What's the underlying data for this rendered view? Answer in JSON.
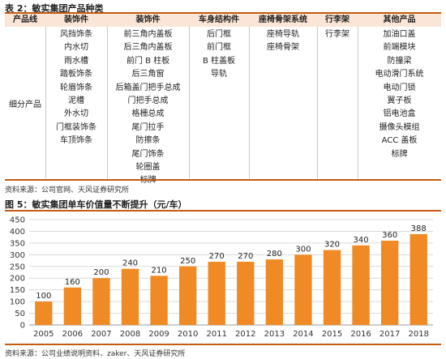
{
  "table_title": "表 2：敏实集团产品种类",
  "table": {
    "headers": [
      "产品线",
      "装饰件",
      "装饰件",
      "车身结构件",
      "座椅骨架系统",
      "行李架",
      "其他产品"
    ],
    "row_label": "细分产品",
    "columns": [
      [
        "风挡饰条",
        "内水切",
        "雨水槽",
        "踏板饰条",
        "轮眉饰条",
        "泥槽",
        "外水切",
        "门框装饰条",
        "车顶饰条"
      ],
      [
        "前三角内盖板",
        "后三角内盖板",
        "前门 B 柱板",
        "后三角窗",
        "后箱盖门把手总成",
        "门把手总成",
        "格栅总成",
        "尾门拉手",
        "防擦条",
        "尾门饰条",
        "轮圈盖",
        "标牌"
      ],
      [
        "后门框",
        "前门框",
        "B 柱盖板",
        "导轨"
      ],
      [
        "座椅导轨",
        "座椅骨架"
      ],
      [
        "行李架"
      ],
      [
        "加油口盖",
        "前端模块",
        "防撞梁",
        "电动滑门系统",
        "电动门锁",
        "翼子板",
        "铝电池盒",
        "摄像头模组",
        "ACC 盖板",
        "标牌"
      ]
    ]
  },
  "table_source": "资料来源：公司官网、天风证券研究所",
  "chart_title": "图 5：敏实集团单车价值量不断提升（元/车）",
  "chart_source": "资料来源：公司业绩说明资料、zaker、天风证券研究所",
  "colors": {
    "bar": "#f08a24",
    "rule": "#c55a11",
    "header_bg": "#fbe5d6",
    "grid": "#d9d9d9"
  },
  "chart_data": {
    "type": "bar",
    "categories": [
      "2005",
      "2006",
      "2007",
      "2008",
      "2009",
      "2010",
      "2011",
      "2012",
      "2013",
      "2014",
      "2015",
      "2016",
      "2017",
      "2018"
    ],
    "values": [
      100,
      160,
      200,
      240,
      210,
      250,
      270,
      270,
      280,
      300,
      320,
      340,
      360,
      388
    ],
    "yticks": [
      0,
      50,
      100,
      150,
      200,
      250,
      300,
      350,
      400,
      450
    ],
    "ylim": [
      0,
      450
    ],
    "grid": true,
    "legend": false,
    "data_labels": true
  }
}
